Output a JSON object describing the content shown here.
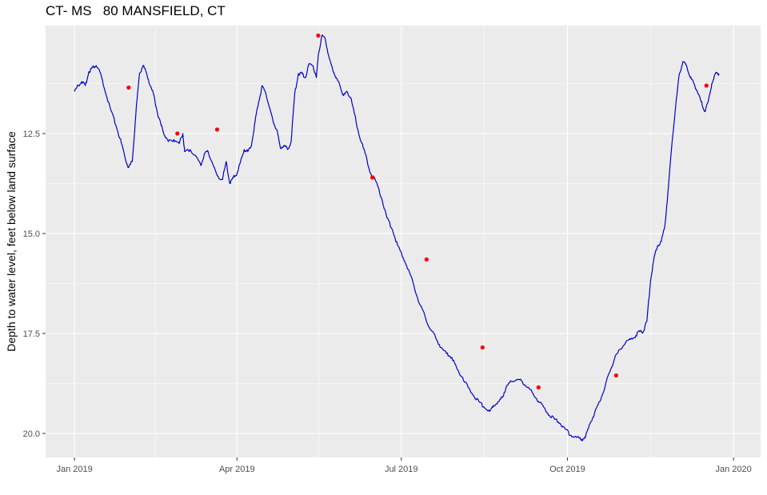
{
  "chart_data": {
    "type": "line",
    "title": "CT- MS   80 MANSFIELD, CT",
    "xlabel": "",
    "ylabel": "Depth to water level, feet below land surface",
    "y_reversed": true,
    "ylim": [
      9.8,
      20.6
    ],
    "xlim": [
      "2018-12-16",
      "2020-01-16"
    ],
    "grid": true,
    "legend": "none",
    "x_ticks": [
      {
        "date": "2019-01-01",
        "label": "Jan 2019"
      },
      {
        "date": "2019-04-01",
        "label": "Apr 2019"
      },
      {
        "date": "2019-07-01",
        "label": "Jul 2019"
      },
      {
        "date": "2019-10-01",
        "label": "Oct 2019"
      },
      {
        "date": "2020-01-01",
        "label": "Jan 2020"
      }
    ],
    "y_ticks": [
      {
        "value": 12.5,
        "label": "12.5"
      },
      {
        "value": 15.0,
        "label": "15.0"
      },
      {
        "value": 17.5,
        "label": "17.5"
      },
      {
        "value": 20.0,
        "label": "20.0"
      }
    ],
    "series": [
      {
        "kind": "continuous",
        "color": "#0000cc",
        "points": [
          [
            "2019-01-01",
            11.45
          ],
          [
            "2019-01-03",
            11.3
          ],
          [
            "2019-01-05",
            11.2
          ],
          [
            "2019-01-07",
            11.3
          ],
          [
            "2019-01-09",
            10.95
          ],
          [
            "2019-01-11",
            10.85
          ],
          [
            "2019-01-13",
            10.8
          ],
          [
            "2019-01-15",
            10.95
          ],
          [
            "2019-01-18",
            11.45
          ],
          [
            "2019-01-21",
            11.9
          ],
          [
            "2019-01-24",
            12.3
          ],
          [
            "2019-01-27",
            12.75
          ],
          [
            "2019-01-29",
            13.1
          ],
          [
            "2019-01-31",
            13.35
          ],
          [
            "2019-02-02",
            13.2
          ],
          [
            "2019-02-04",
            12.0
          ],
          [
            "2019-02-06",
            11.0
          ],
          [
            "2019-02-08",
            10.8
          ],
          [
            "2019-02-10",
            11.0
          ],
          [
            "2019-02-12",
            11.3
          ],
          [
            "2019-02-14",
            11.55
          ],
          [
            "2019-02-16",
            12.0
          ],
          [
            "2019-02-18",
            12.3
          ],
          [
            "2019-02-20",
            12.55
          ],
          [
            "2019-02-22",
            12.7
          ],
          [
            "2019-02-25",
            12.65
          ],
          [
            "2019-02-28",
            12.75
          ],
          [
            "2019-03-02",
            12.5
          ],
          [
            "2019-03-03",
            12.95
          ],
          [
            "2019-03-06",
            12.9
          ],
          [
            "2019-03-09",
            13.05
          ],
          [
            "2019-03-12",
            13.3
          ],
          [
            "2019-03-14",
            13.0
          ],
          [
            "2019-03-16",
            12.95
          ],
          [
            "2019-03-18",
            13.2
          ],
          [
            "2019-03-21",
            13.55
          ],
          [
            "2019-03-24",
            13.65
          ],
          [
            "2019-03-26",
            13.2
          ],
          [
            "2019-03-28",
            13.75
          ],
          [
            "2019-03-30",
            13.6
          ],
          [
            "2019-04-01",
            13.5
          ],
          [
            "2019-04-03",
            13.2
          ],
          [
            "2019-04-05",
            12.9
          ],
          [
            "2019-04-07",
            12.95
          ],
          [
            "2019-04-09",
            12.8
          ],
          [
            "2019-04-11",
            12.2
          ],
          [
            "2019-04-13",
            11.7
          ],
          [
            "2019-04-15",
            11.3
          ],
          [
            "2019-04-17",
            11.5
          ],
          [
            "2019-04-19",
            11.85
          ],
          [
            "2019-04-21",
            12.2
          ],
          [
            "2019-04-23",
            12.4
          ],
          [
            "2019-04-25",
            12.85
          ],
          [
            "2019-04-27",
            12.8
          ],
          [
            "2019-04-29",
            12.9
          ],
          [
            "2019-05-01",
            12.7
          ],
          [
            "2019-05-03",
            11.5
          ],
          [
            "2019-05-05",
            11.0
          ],
          [
            "2019-05-07",
            11.0
          ],
          [
            "2019-05-09",
            11.1
          ],
          [
            "2019-05-11",
            10.75
          ],
          [
            "2019-05-13",
            10.8
          ],
          [
            "2019-05-15",
            11.1
          ],
          [
            "2019-05-16",
            10.55
          ],
          [
            "2019-05-18",
            10.05
          ],
          [
            "2019-05-20",
            10.15
          ],
          [
            "2019-05-22",
            10.6
          ],
          [
            "2019-05-24",
            10.9
          ],
          [
            "2019-05-26",
            11.1
          ],
          [
            "2019-05-28",
            11.3
          ],
          [
            "2019-05-30",
            11.55
          ],
          [
            "2019-06-01",
            11.45
          ],
          [
            "2019-06-03",
            11.6
          ],
          [
            "2019-06-05",
            12.0
          ],
          [
            "2019-06-08",
            12.6
          ],
          [
            "2019-06-11",
            13.0
          ],
          [
            "2019-06-14",
            13.5
          ],
          [
            "2019-06-17",
            13.7
          ],
          [
            "2019-06-20",
            14.1
          ],
          [
            "2019-06-23",
            14.6
          ],
          [
            "2019-06-26",
            14.9
          ],
          [
            "2019-06-29",
            15.3
          ],
          [
            "2019-07-02",
            15.6
          ],
          [
            "2019-07-05",
            15.9
          ],
          [
            "2019-07-08",
            16.3
          ],
          [
            "2019-07-11",
            16.75
          ],
          [
            "2019-07-14",
            17.05
          ],
          [
            "2019-07-17",
            17.4
          ],
          [
            "2019-07-20",
            17.6
          ],
          [
            "2019-07-23",
            17.85
          ],
          [
            "2019-07-26",
            18.0
          ],
          [
            "2019-07-29",
            18.1
          ],
          [
            "2019-08-01",
            18.4
          ],
          [
            "2019-08-04",
            18.6
          ],
          [
            "2019-08-07",
            18.85
          ],
          [
            "2019-08-10",
            19.05
          ],
          [
            "2019-08-13",
            19.2
          ],
          [
            "2019-08-16",
            19.35
          ],
          [
            "2019-08-19",
            19.45
          ],
          [
            "2019-08-21",
            19.3
          ],
          [
            "2019-08-24",
            19.2
          ],
          [
            "2019-08-26",
            19.1
          ],
          [
            "2019-08-28",
            18.85
          ],
          [
            "2019-08-31",
            18.7
          ],
          [
            "2019-09-03",
            18.65
          ],
          [
            "2019-09-06",
            18.7
          ],
          [
            "2019-09-09",
            18.85
          ],
          [
            "2019-09-12",
            19.0
          ],
          [
            "2019-09-15",
            19.2
          ],
          [
            "2019-09-18",
            19.35
          ],
          [
            "2019-09-21",
            19.55
          ],
          [
            "2019-09-24",
            19.65
          ],
          [
            "2019-09-27",
            19.75
          ],
          [
            "2019-09-30",
            19.9
          ],
          [
            "2019-10-03",
            20.05
          ],
          [
            "2019-10-06",
            20.1
          ],
          [
            "2019-10-09",
            20.15
          ],
          [
            "2019-10-11",
            20.1
          ],
          [
            "2019-10-13",
            19.8
          ],
          [
            "2019-10-16",
            19.5
          ],
          [
            "2019-10-19",
            19.2
          ],
          [
            "2019-10-22",
            18.8
          ],
          [
            "2019-10-24",
            18.5
          ],
          [
            "2019-10-27",
            18.15
          ],
          [
            "2019-10-30",
            17.9
          ],
          [
            "2019-11-02",
            17.75
          ],
          [
            "2019-11-05",
            17.65
          ],
          [
            "2019-11-08",
            17.55
          ],
          [
            "2019-11-10",
            17.45
          ],
          [
            "2019-11-12",
            17.45
          ],
          [
            "2019-11-14",
            17.2
          ],
          [
            "2019-11-16",
            16.2
          ],
          [
            "2019-11-18",
            15.6
          ],
          [
            "2019-11-20",
            15.3
          ],
          [
            "2019-11-22",
            15.2
          ],
          [
            "2019-11-24",
            14.8
          ],
          [
            "2019-11-26",
            13.8
          ],
          [
            "2019-11-28",
            12.7
          ],
          [
            "2019-11-30",
            11.8
          ],
          [
            "2019-12-02",
            11.0
          ],
          [
            "2019-12-04",
            10.7
          ],
          [
            "2019-12-06",
            10.8
          ],
          [
            "2019-12-08",
            11.1
          ],
          [
            "2019-12-10",
            11.25
          ],
          [
            "2019-12-12",
            11.45
          ],
          [
            "2019-12-14",
            11.7
          ],
          [
            "2019-12-16",
            11.95
          ],
          [
            "2019-12-18",
            11.7
          ],
          [
            "2019-12-20",
            11.25
          ],
          [
            "2019-12-22",
            11.0
          ],
          [
            "2019-12-24",
            11.0
          ]
        ]
      },
      {
        "kind": "markers",
        "color": "#ff0000",
        "points": [
          [
            "2019-01-31",
            11.35
          ],
          [
            "2019-02-27",
            12.5
          ],
          [
            "2019-03-21",
            12.4
          ],
          [
            "2019-05-16",
            10.05
          ],
          [
            "2019-06-15",
            13.6
          ],
          [
            "2019-07-15",
            15.65
          ],
          [
            "2019-08-15",
            17.85
          ],
          [
            "2019-09-15",
            18.85
          ],
          [
            "2019-10-28",
            18.55
          ],
          [
            "2019-12-17",
            11.3
          ]
        ]
      }
    ]
  }
}
